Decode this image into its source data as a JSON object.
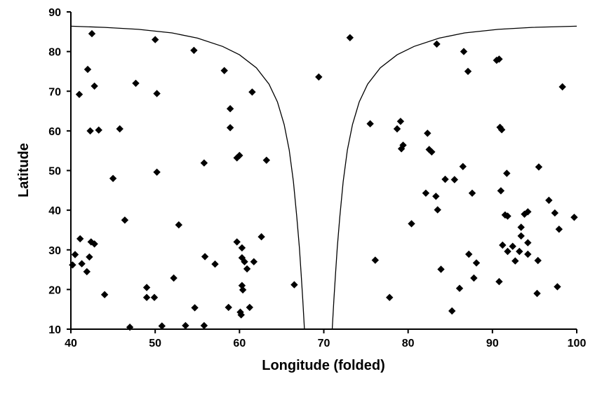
{
  "chart_data": {
    "type": "scatter",
    "title": "",
    "xlabel": "Longitude (folded)",
    "ylabel": "Latitude",
    "xlim": [
      40,
      100
    ],
    "ylim": [
      10,
      90
    ],
    "xticks": [
      40,
      50,
      60,
      70,
      80,
      90,
      100
    ],
    "yticks": [
      10,
      20,
      30,
      40,
      50,
      60,
      70,
      80,
      90
    ],
    "grid": false,
    "legend": "none",
    "marker": "diamond",
    "marker_color": "#000000",
    "curve_color": "#000000",
    "series": [
      {
        "points": [
          [
            42.5,
            84.5
          ],
          [
            41,
            69.2
          ],
          [
            42,
            75.5
          ],
          [
            42.8,
            71.3
          ],
          [
            42.3,
            60
          ],
          [
            43.3,
            60.2
          ],
          [
            40.2,
            26.2
          ],
          [
            40.5,
            28.8
          ],
          [
            41.1,
            32.8
          ],
          [
            41.3,
            26.5
          ],
          [
            41.9,
            24.5
          ],
          [
            42.2,
            28.2
          ],
          [
            42.4,
            32
          ],
          [
            42.8,
            31.5
          ],
          [
            44,
            18.7
          ],
          [
            45,
            48
          ],
          [
            45.8,
            60.5
          ],
          [
            46.4,
            37.5
          ],
          [
            47,
            10.5
          ],
          [
            47.7,
            72
          ],
          [
            49,
            20.5
          ],
          [
            49,
            18
          ],
          [
            49.9,
            18
          ],
          [
            50,
            83
          ],
          [
            50.2,
            69.4
          ],
          [
            50.2,
            49.6
          ],
          [
            50.8,
            10.8
          ],
          [
            52.2,
            22.9
          ],
          [
            52.8,
            36.3
          ],
          [
            53.6,
            10.9
          ],
          [
            54.6,
            80.3
          ],
          [
            54.7,
            15.4
          ],
          [
            55.8,
            51.9
          ],
          [
            55.9,
            28.3
          ],
          [
            55.8,
            10.9
          ],
          [
            57.1,
            26.4
          ],
          [
            58.2,
            75.2
          ],
          [
            58.7,
            15.5
          ],
          [
            58.9,
            65.6
          ],
          [
            58.9,
            60.8
          ],
          [
            59.7,
            53.2
          ],
          [
            60,
            53.8
          ],
          [
            59.7,
            32
          ],
          [
            60.1,
            14.3
          ],
          [
            60.2,
            13.6
          ],
          [
            60.3,
            30.5
          ],
          [
            60.3,
            28
          ],
          [
            60.3,
            21
          ],
          [
            60.4,
            19.9
          ],
          [
            60.6,
            27
          ],
          [
            60.9,
            25.2
          ],
          [
            61.2,
            15.5
          ],
          [
            61.5,
            69.8
          ],
          [
            61.7,
            27
          ],
          [
            62.6,
            33.3
          ],
          [
            63.2,
            52.6
          ],
          [
            66.5,
            21.2
          ],
          [
            69.4,
            73.6
          ],
          [
            73.1,
            83.5
          ],
          [
            75.5,
            61.8
          ],
          [
            76.1,
            27.4
          ],
          [
            77.8,
            18
          ],
          [
            78.7,
            60.5
          ],
          [
            79.1,
            62.4
          ],
          [
            79.2,
            55.5
          ],
          [
            79.4,
            56.4
          ],
          [
            80.4,
            36.6
          ],
          [
            82.1,
            44.3
          ],
          [
            82.3,
            59.4
          ],
          [
            82.5,
            55.3
          ],
          [
            82.8,
            54.7
          ],
          [
            83.3,
            43.5
          ],
          [
            83.5,
            40.1
          ],
          [
            83.4,
            81.9
          ],
          [
            83.9,
            25.1
          ],
          [
            84.4,
            47.8
          ],
          [
            85.2,
            14.6
          ],
          [
            85.5,
            47.7
          ],
          [
            86.1,
            20.3
          ],
          [
            86.5,
            51
          ],
          [
            86.6,
            80
          ],
          [
            87.1,
            75
          ],
          [
            87.2,
            28.9
          ],
          [
            87.6,
            44.3
          ],
          [
            87.8,
            22.9
          ],
          [
            88.1,
            26.7
          ],
          [
            90.5,
            77.8
          ],
          [
            90.8,
            78.1
          ],
          [
            90.9,
            60.9
          ],
          [
            91.1,
            60.3
          ],
          [
            90.8,
            22
          ],
          [
            91,
            44.9
          ],
          [
            91.2,
            31.2
          ],
          [
            91.5,
            38.8
          ],
          [
            91.7,
            49.3
          ],
          [
            91.8,
            38.5
          ],
          [
            91.8,
            29.6
          ],
          [
            92.4,
            30.9
          ],
          [
            92.7,
            27.2
          ],
          [
            93.2,
            29.6
          ],
          [
            93.4,
            33.5
          ],
          [
            93.4,
            35.7
          ],
          [
            93.8,
            39
          ],
          [
            94.2,
            39.6
          ],
          [
            94.2,
            31.8
          ],
          [
            94.2,
            28.9
          ],
          [
            95.3,
            19
          ],
          [
            95.4,
            27.3
          ],
          [
            95.5,
            50.9
          ],
          [
            96.7,
            42.5
          ],
          [
            97.4,
            39.3
          ],
          [
            97.7,
            20.7
          ],
          [
            97.9,
            35.2
          ],
          [
            98.3,
            71.1
          ],
          [
            99.7,
            38.2
          ]
        ]
      },
      {
        "type": "line",
        "points": [
          [
            40,
            86.4
          ],
          [
            44,
            86.1
          ],
          [
            48,
            85.6
          ],
          [
            52,
            84.7
          ],
          [
            55,
            83.4
          ],
          [
            58,
            81.3
          ],
          [
            60,
            79.2
          ],
          [
            62,
            75.9
          ],
          [
            63.5,
            71.8
          ],
          [
            64.5,
            67.3
          ],
          [
            65.3,
            61.6
          ],
          [
            65.9,
            55.2
          ],
          [
            66.4,
            47.2
          ],
          [
            66.8,
            38.3
          ],
          [
            67.1,
            30.6
          ],
          [
            67.3,
            24.2
          ],
          [
            67.5,
            17.5
          ],
          [
            67.7,
            10
          ]
        ]
      },
      {
        "type": "line",
        "points": [
          [
            71,
            10
          ],
          [
            71.2,
            17.5
          ],
          [
            71.4,
            24.2
          ],
          [
            71.6,
            30.6
          ],
          [
            71.9,
            38.3
          ],
          [
            72.3,
            47.2
          ],
          [
            72.8,
            55.2
          ],
          [
            73.4,
            61.6
          ],
          [
            74.2,
            67.3
          ],
          [
            75.2,
            71.8
          ],
          [
            76.7,
            75.9
          ],
          [
            78.7,
            79.2
          ],
          [
            80.7,
            81.3
          ],
          [
            83.7,
            83.4
          ],
          [
            86.7,
            84.7
          ],
          [
            90.7,
            85.6
          ],
          [
            94.7,
            86.1
          ],
          [
            100,
            86.4
          ]
        ]
      }
    ]
  }
}
